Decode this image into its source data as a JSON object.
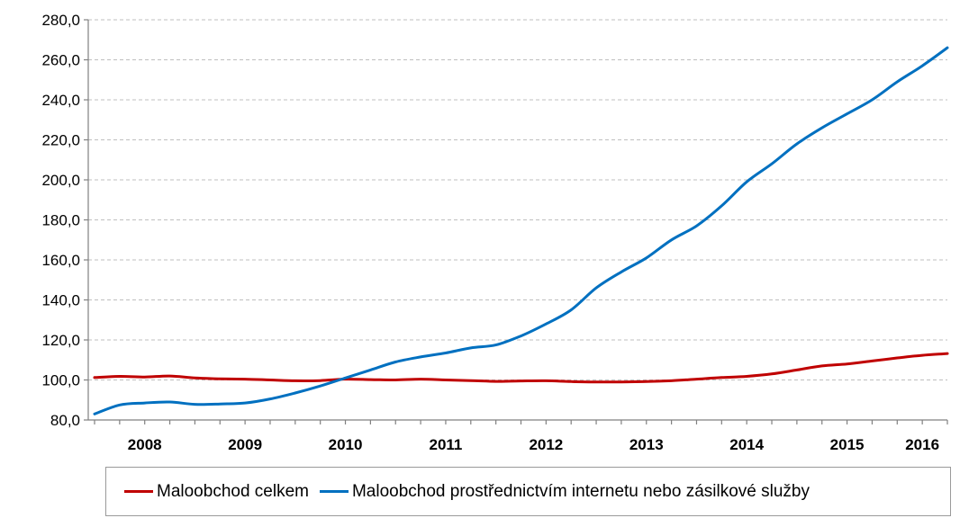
{
  "chart_data": {
    "type": "line",
    "title": "",
    "xlabel": "",
    "ylabel": "",
    "ylim": [
      80,
      280
    ],
    "yticks": [
      "80,0",
      "100,0",
      "120,0",
      "140,0",
      "160,0",
      "180,0",
      "200,0",
      "220,0",
      "240,0",
      "260,0",
      "280,0"
    ],
    "xlim": [
      2007.5,
      2016.0
    ],
    "xticks": [
      {
        "label": "2008",
        "x": 2008.0
      },
      {
        "label": "2009",
        "x": 2009.0
      },
      {
        "label": "2010",
        "x": 2010.0
      },
      {
        "label": "2011",
        "x": 2011.0
      },
      {
        "label": "2012",
        "x": 2012.0
      },
      {
        "label": "2013",
        "x": 2013.0
      },
      {
        "label": "2014",
        "x": 2014.0
      },
      {
        "label": "2015",
        "x": 2015.0
      },
      {
        "label": "2016",
        "x": 2015.75
      }
    ],
    "grid": true,
    "legend_position": "bottom",
    "series": [
      {
        "name": "Maloobchod celkem",
        "color": "#c00000",
        "x": [
          2007.5,
          2007.75,
          2008.0,
          2008.25,
          2008.5,
          2008.75,
          2009.0,
          2009.25,
          2009.5,
          2009.75,
          2010.0,
          2010.25,
          2010.5,
          2010.75,
          2011.0,
          2011.25,
          2011.5,
          2011.75,
          2012.0,
          2012.25,
          2012.5,
          2012.75,
          2013.0,
          2013.25,
          2013.5,
          2013.75,
          2014.0,
          2014.25,
          2014.5,
          2014.75,
          2015.0,
          2015.25,
          2015.5,
          2015.75,
          2016.0
        ],
        "y": [
          101.2,
          101.8,
          101.5,
          102.0,
          101.0,
          100.6,
          100.4,
          100.0,
          99.6,
          99.7,
          100.4,
          100.2,
          100.0,
          100.4,
          100.0,
          99.7,
          99.3,
          99.5,
          99.6,
          99.2,
          99.0,
          99.0,
          99.2,
          99.6,
          100.4,
          101.2,
          101.8,
          103.0,
          105.0,
          107.0,
          108.0,
          109.5,
          111.0,
          112.3,
          113.2
        ]
      },
      {
        "name": "Maloobchod prostřednictvím internetu nebo zásilkové služby",
        "color": "#0070c0",
        "x": [
          2007.5,
          2007.75,
          2008.0,
          2008.25,
          2008.5,
          2008.75,
          2009.0,
          2009.25,
          2009.5,
          2009.75,
          2010.0,
          2010.25,
          2010.5,
          2010.75,
          2011.0,
          2011.25,
          2011.5,
          2011.75,
          2012.0,
          2012.25,
          2012.5,
          2012.75,
          2013.0,
          2013.25,
          2013.5,
          2013.75,
          2014.0,
          2014.25,
          2014.5,
          2014.75,
          2015.0,
          2015.25,
          2015.5,
          2015.75,
          2016.0
        ],
        "y": [
          83.0,
          87.5,
          88.5,
          89.0,
          87.8,
          88.0,
          88.5,
          90.5,
          93.5,
          97.0,
          101.0,
          105.0,
          109.0,
          111.5,
          113.5,
          116.0,
          117.5,
          122.0,
          128.0,
          135.0,
          146.0,
          154.0,
          161.0,
          170.0,
          177.0,
          187.0,
          199.0,
          208.0,
          218.0,
          226.0,
          233.0,
          240.0,
          249.0,
          257.0,
          266.0
        ]
      }
    ]
  }
}
